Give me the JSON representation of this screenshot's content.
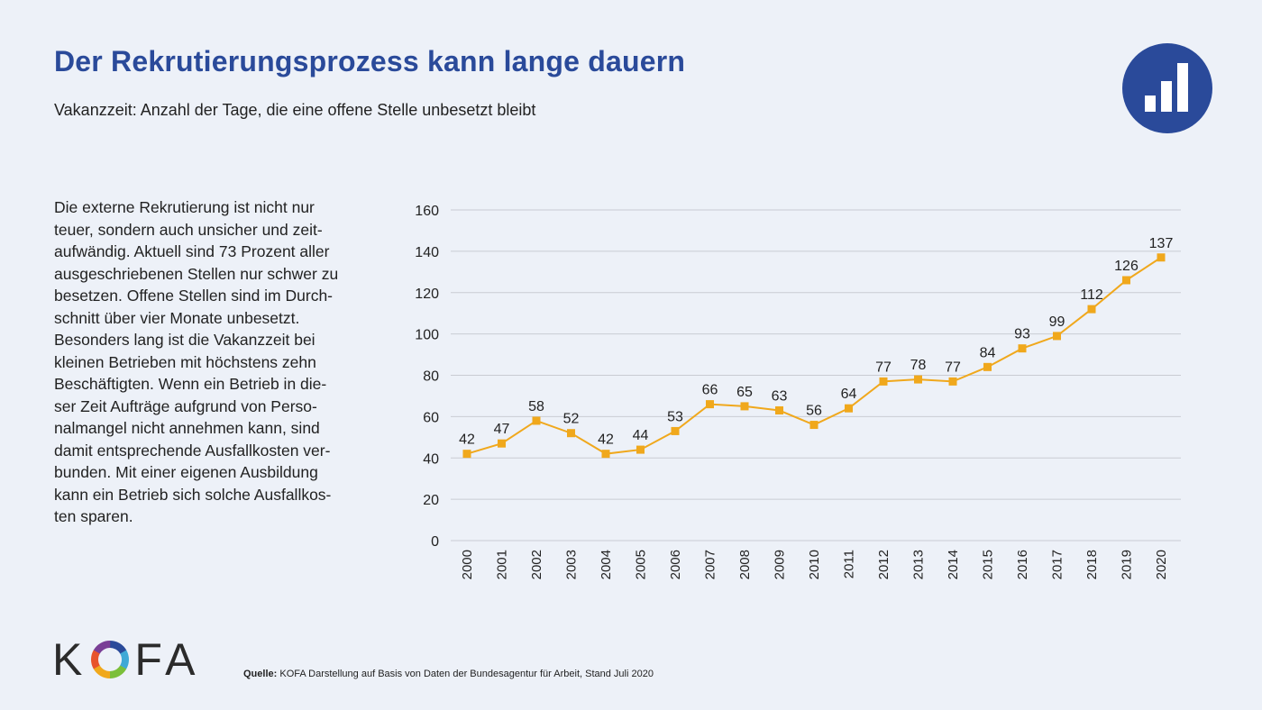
{
  "header": {
    "title": "Der Rekrutierungsprozess kann lange dauern",
    "subtitle": "Vakanzzeit: Anzahl der Tage, die eine offene Stelle unbesetzt bleibt",
    "badge_icon": "bar-chart-icon"
  },
  "body_text": "Die externe Rekrutierung ist nicht nur\nteuer, sondern auch unsicher und zeit-\naufwändig. Aktuell sind 73 Prozent aller\nausgeschriebenen Stellen nur schwer zu\nbesetzen. Offene Stellen sind im Durch-\nschnitt über vier Monate unbesetzt.\nBesonders lang ist die Vakanzzeit bei\nkleinen Betrieben mit höchstens zehn\nBeschäftigten. Wenn ein Betrieb in die-\nser Zeit Aufträge aufgrund von Perso-\nnalmangel nicht annehmen kann, sind\ndamit entsprechende Ausfallkosten ver-\nbunden. Mit einer eigenen Ausbildung\nkann ein Betrieb sich solche Ausfallkos-\nten sparen.",
  "footer": {
    "logo_left": "K",
    "logo_right": "FA",
    "source_label": "Quelle:",
    "source_text": "KOFA Darstellung auf Basis von Daten der Bundesagentur für Arbeit, Stand Juli 2020"
  },
  "colors": {
    "title": "#2a4a9a",
    "line": "#f0a81c",
    "grid": "#c9ccd3",
    "background": "#edf1f8"
  },
  "chart_data": {
    "type": "line",
    "title": "Vakanzzeit: Anzahl der Tage, die eine offene Stelle unbesetzt bleibt",
    "xlabel": "",
    "ylabel": "",
    "categories": [
      "2000",
      "2001",
      "2002",
      "2003",
      "2004",
      "2005",
      "2006",
      "2007",
      "2008",
      "2009",
      "2010",
      "2011",
      "2012",
      "2013",
      "2014",
      "2015",
      "2016",
      "2017",
      "2018",
      "2019",
      "2020"
    ],
    "values": [
      42,
      47,
      58,
      52,
      42,
      44,
      53,
      66,
      65,
      63,
      56,
      64,
      77,
      78,
      77,
      84,
      93,
      99,
      112,
      126,
      137
    ],
    "labels": [
      "42",
      "47",
      "58",
      "52",
      "42",
      "44",
      "53",
      "66",
      "65",
      "63",
      "56",
      "64",
      "77",
      "78",
      "77",
      "84",
      "93",
      "99",
      "112",
      "126",
      "137"
    ],
    "ylim": [
      0,
      160
    ],
    "yticks": [
      0,
      20,
      40,
      60,
      80,
      100,
      120,
      140,
      160
    ],
    "grid": true,
    "legend": "none"
  }
}
